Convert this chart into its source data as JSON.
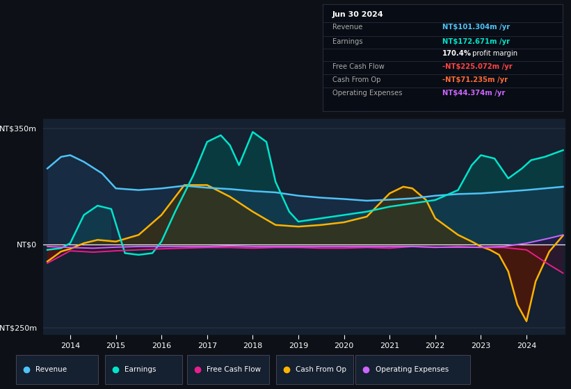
{
  "bg_color": "#0d1117",
  "plot_bg_color": "#152030",
  "title_box": {
    "date": "Jun 30 2024",
    "rows": [
      {
        "label": "Revenue",
        "value": "NT$101.304m /yr",
        "value_color": "#4fc3f7"
      },
      {
        "label": "Earnings",
        "value": "NT$172.671m /yr",
        "value_color": "#00e5cc"
      },
      {
        "label": "",
        "value2": "170.4%",
        "value3": " profit margin",
        "value_color": "#ffffff"
      },
      {
        "label": "Free Cash Flow",
        "value": "-NT$225.072m /yr",
        "value_color": "#ff4444"
      },
      {
        "label": "Cash From Op",
        "value": "-NT$71.235m /yr",
        "value_color": "#ff6b35"
      },
      {
        "label": "Operating Expenses",
        "value": "NT$44.374m /yr",
        "value_color": "#cc66ff"
      }
    ]
  },
  "y_label_top": "NT$350m",
  "y_label_zero": "NT$0",
  "y_label_bottom": "-NT$250m",
  "x_ticks": [
    2014,
    2015,
    2016,
    2017,
    2018,
    2019,
    2020,
    2021,
    2022,
    2023,
    2024
  ],
  "ylim": [
    -270,
    380
  ],
  "xlim": [
    2013.4,
    2024.85
  ],
  "legend": [
    {
      "label": "Revenue",
      "color": "#4fc3f7"
    },
    {
      "label": "Earnings",
      "color": "#00e5cc"
    },
    {
      "label": "Free Cash Flow",
      "color": "#e91e8c"
    },
    {
      "label": "Cash From Op",
      "color": "#ffb300"
    },
    {
      "label": "Operating Expenses",
      "color": "#cc66ff"
    }
  ],
  "revenue_x": [
    2013.5,
    2013.8,
    2014.0,
    2014.3,
    2014.7,
    2015.0,
    2015.5,
    2016.0,
    2016.5,
    2017.0,
    2017.5,
    2018.0,
    2018.5,
    2019.0,
    2019.5,
    2020.0,
    2020.5,
    2021.0,
    2021.5,
    2022.0,
    2022.5,
    2023.0,
    2023.3,
    2023.7,
    2024.0,
    2024.4,
    2024.8
  ],
  "revenue_y": [
    230,
    265,
    270,
    250,
    215,
    170,
    165,
    170,
    178,
    172,
    168,
    162,
    158,
    148,
    142,
    138,
    133,
    136,
    140,
    148,
    153,
    155,
    158,
    162,
    165,
    170,
    175
  ],
  "earnings_x": [
    2013.5,
    2013.8,
    2014.0,
    2014.3,
    2014.6,
    2014.9,
    2015.2,
    2015.5,
    2015.8,
    2016.0,
    2016.3,
    2016.7,
    2017.0,
    2017.3,
    2017.5,
    2017.7,
    2018.0,
    2018.3,
    2018.5,
    2018.8,
    2019.0,
    2019.5,
    2020.0,
    2020.5,
    2021.0,
    2021.5,
    2022.0,
    2022.5,
    2022.8,
    2023.0,
    2023.3,
    2023.6,
    2023.9,
    2024.1,
    2024.4,
    2024.8
  ],
  "earnings_y": [
    -15,
    -10,
    5,
    90,
    118,
    108,
    -25,
    -30,
    -25,
    10,
    100,
    210,
    310,
    330,
    300,
    240,
    340,
    310,
    190,
    100,
    70,
    80,
    90,
    100,
    115,
    125,
    135,
    165,
    240,
    270,
    260,
    200,
    230,
    255,
    265,
    285
  ],
  "fcf_x": [
    2013.5,
    2014.0,
    2014.5,
    2015.0,
    2015.5,
    2016.0,
    2016.5,
    2017.0,
    2017.5,
    2018.0,
    2018.5,
    2019.0,
    2019.5,
    2020.0,
    2020.5,
    2021.0,
    2021.5,
    2022.0,
    2022.5,
    2023.0,
    2023.5,
    2024.0,
    2024.5,
    2024.8
  ],
  "fcf_y": [
    -55,
    -18,
    -22,
    -18,
    -15,
    -12,
    -10,
    -8,
    -8,
    -10,
    -8,
    -8,
    -10,
    -10,
    -8,
    -10,
    -5,
    -8,
    -5,
    -8,
    -8,
    -15,
    -60,
    -85
  ],
  "cfo_x": [
    2013.5,
    2013.8,
    2014.0,
    2014.3,
    2014.6,
    2015.0,
    2015.5,
    2016.0,
    2016.5,
    2017.0,
    2017.5,
    2018.0,
    2018.5,
    2019.0,
    2019.5,
    2020.0,
    2020.5,
    2021.0,
    2021.3,
    2021.5,
    2021.8,
    2022.0,
    2022.3,
    2022.5,
    2022.8,
    2023.0,
    2023.2,
    2023.4,
    2023.6,
    2023.8,
    2024.0,
    2024.2,
    2024.5,
    2024.8
  ],
  "cfo_y": [
    -50,
    -20,
    -12,
    5,
    15,
    10,
    30,
    90,
    180,
    180,
    145,
    100,
    60,
    55,
    60,
    68,
    85,
    155,
    175,
    170,
    135,
    80,
    50,
    30,
    10,
    -5,
    -15,
    -30,
    -80,
    -180,
    -230,
    -110,
    -20,
    28
  ],
  "ope_x": [
    2013.5,
    2014.0,
    2014.5,
    2015.0,
    2015.5,
    2016.0,
    2016.5,
    2017.0,
    2017.5,
    2018.0,
    2018.5,
    2019.0,
    2019.5,
    2020.0,
    2020.5,
    2021.0,
    2021.5,
    2022.0,
    2022.5,
    2023.0,
    2023.5,
    2024.0,
    2024.5,
    2024.8
  ],
  "ope_y": [
    -5,
    -8,
    -10,
    -7,
    -5,
    -5,
    -5,
    -5,
    -3,
    -5,
    -5,
    -5,
    -5,
    -5,
    -5,
    -5,
    -5,
    -7,
    -7,
    -7,
    -5,
    5,
    20,
    30
  ]
}
